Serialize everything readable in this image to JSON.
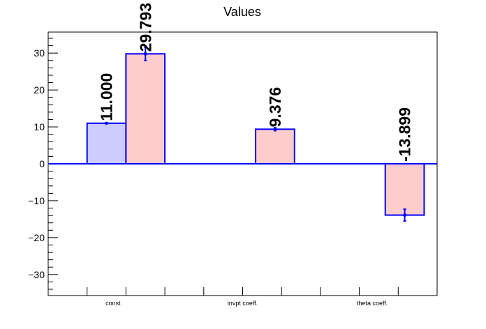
{
  "chart_data": {
    "type": "bar",
    "title": "Values",
    "categories": [
      "const",
      "invpt coeff.",
      "theta coeff."
    ],
    "ylim": [
      -35.7,
      35.7
    ],
    "yticks": [
      -30,
      -20,
      -10,
      0,
      10,
      20,
      30
    ],
    "grid": false,
    "series": [
      {
        "color_fill": "#ccccff",
        "color_line": "#0000ff",
        "values": [
          11.0,
          null,
          null
        ],
        "errors": [
          0,
          null,
          null
        ],
        "labels": [
          "11.000",
          null,
          null
        ]
      },
      {
        "color_fill": "#ffcccc",
        "color_line": "#0000ff",
        "values": [
          29.793,
          9.376,
          -13.899
        ],
        "errors": [
          1.8,
          0.4,
          1.6
        ],
        "labels": [
          "29.793",
          "9.376",
          "-13.899"
        ]
      }
    ]
  }
}
